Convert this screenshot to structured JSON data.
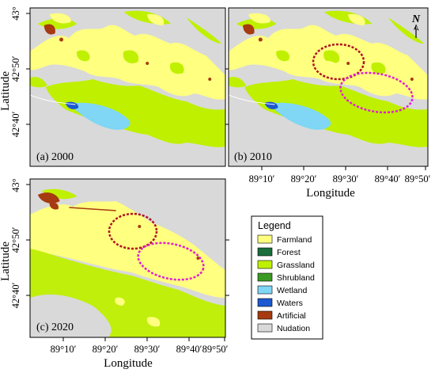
{
  "colors": {
    "nudation": "#d9d9d9",
    "farmland": "#ffff80",
    "grassland": "#bff000",
    "forest": "#1a6e3c",
    "shrubland": "#3a9a22",
    "wetland": "#7fd6f5",
    "waters": "#1d59d1",
    "artificial": "#a63a10",
    "ellipse_red": "#b01020",
    "ellipse_magenta": "#e020d0"
  },
  "panels": [
    {
      "label": "(a)  2000"
    },
    {
      "label": "(b)  2010"
    },
    {
      "label": "(c)  2020"
    }
  ],
  "axes": {
    "ylabel": "Latitude",
    "xlabel": "Longitude",
    "yticks": [
      "43°",
      "42°50′",
      "42°40′"
    ],
    "xticks": [
      "89°10′",
      "89°20′",
      "89°30′",
      "89°40′",
      "89°50′"
    ]
  },
  "north_arrow": {
    "label": "N"
  },
  "legend": {
    "title": "Legend",
    "items": [
      {
        "label": "Farmland",
        "color": "#ffff80"
      },
      {
        "label": "Forest",
        "color": "#1a6e3c"
      },
      {
        "label": "Grassland",
        "color": "#bff000"
      },
      {
        "label": "Shrubland",
        "color": "#3a9a22"
      },
      {
        "label": "Wetland",
        "color": "#7fd6f5"
      },
      {
        "label": "Waters",
        "color": "#1d59d1"
      },
      {
        "label": "Artificial",
        "color": "#a63a10"
      },
      {
        "label": "Nudation",
        "color": "#d9d9d9"
      }
    ]
  }
}
